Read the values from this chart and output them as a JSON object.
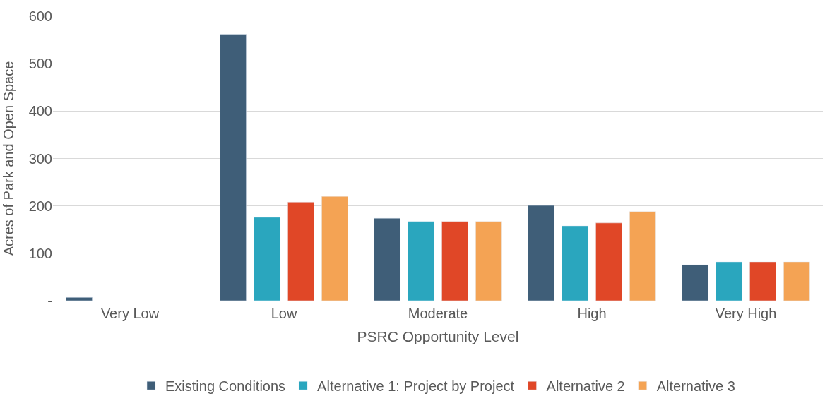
{
  "chart_data": {
    "type": "bar",
    "xlabel": "PSRC Opportunity Level",
    "ylabel": "Acres of Park and Open Space",
    "categories": [
      "Very Low",
      "Low",
      "Moderate",
      "High",
      "Very High"
    ],
    "series": [
      {
        "name": "Existing Conditions",
        "color": "#3f5e78",
        "values": [
          7,
          562,
          174,
          201,
          76
        ]
      },
      {
        "name": "Alternative 1: Project by Project",
        "color": "#2aa6be",
        "values": [
          null,
          176,
          167,
          158,
          82
        ]
      },
      {
        "name": "Alternative 2",
        "color": "#e04727",
        "values": [
          null,
          208,
          167,
          164,
          82
        ]
      },
      {
        "name": "Alternative 3",
        "color": "#f4a354",
        "values": [
          null,
          220,
          167,
          188,
          82
        ]
      }
    ],
    "ylim": [
      0,
      600
    ],
    "yticks": [
      {
        "value": 0,
        "label": "-"
      },
      100,
      200,
      300,
      400,
      500,
      600
    ],
    "grid": "y",
    "legend": "bottom"
  }
}
